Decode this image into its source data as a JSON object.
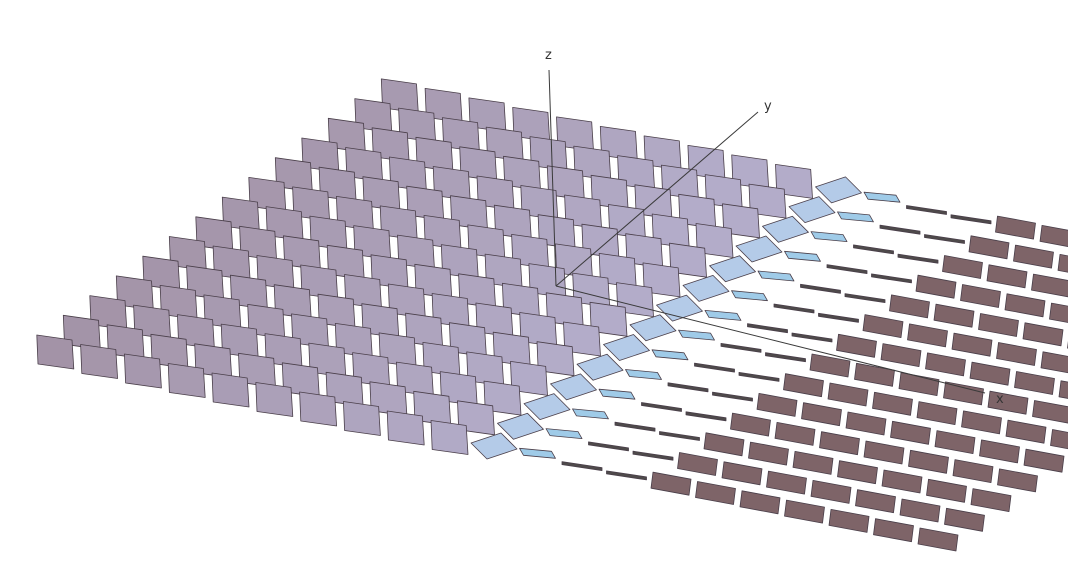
{
  "axes": {
    "x_label": "x",
    "y_label": "y",
    "z_label": "z"
  },
  "lattice": {
    "rows": 14,
    "cols": 21,
    "frozen_cols": 10,
    "transition_col": 10,
    "description_free": true
  },
  "colors": {
    "frozen_tile": "#a393a7",
    "frozen_tile_near": "#b3acc9",
    "transition_tile": "#b4cbe8",
    "boundary_tile": "#9fcbe8",
    "rotated_tile": "#7e6468",
    "edge_tile": "#4e4a4a",
    "tile_stroke": "#4a3f4a",
    "background": "#ffffff"
  }
}
